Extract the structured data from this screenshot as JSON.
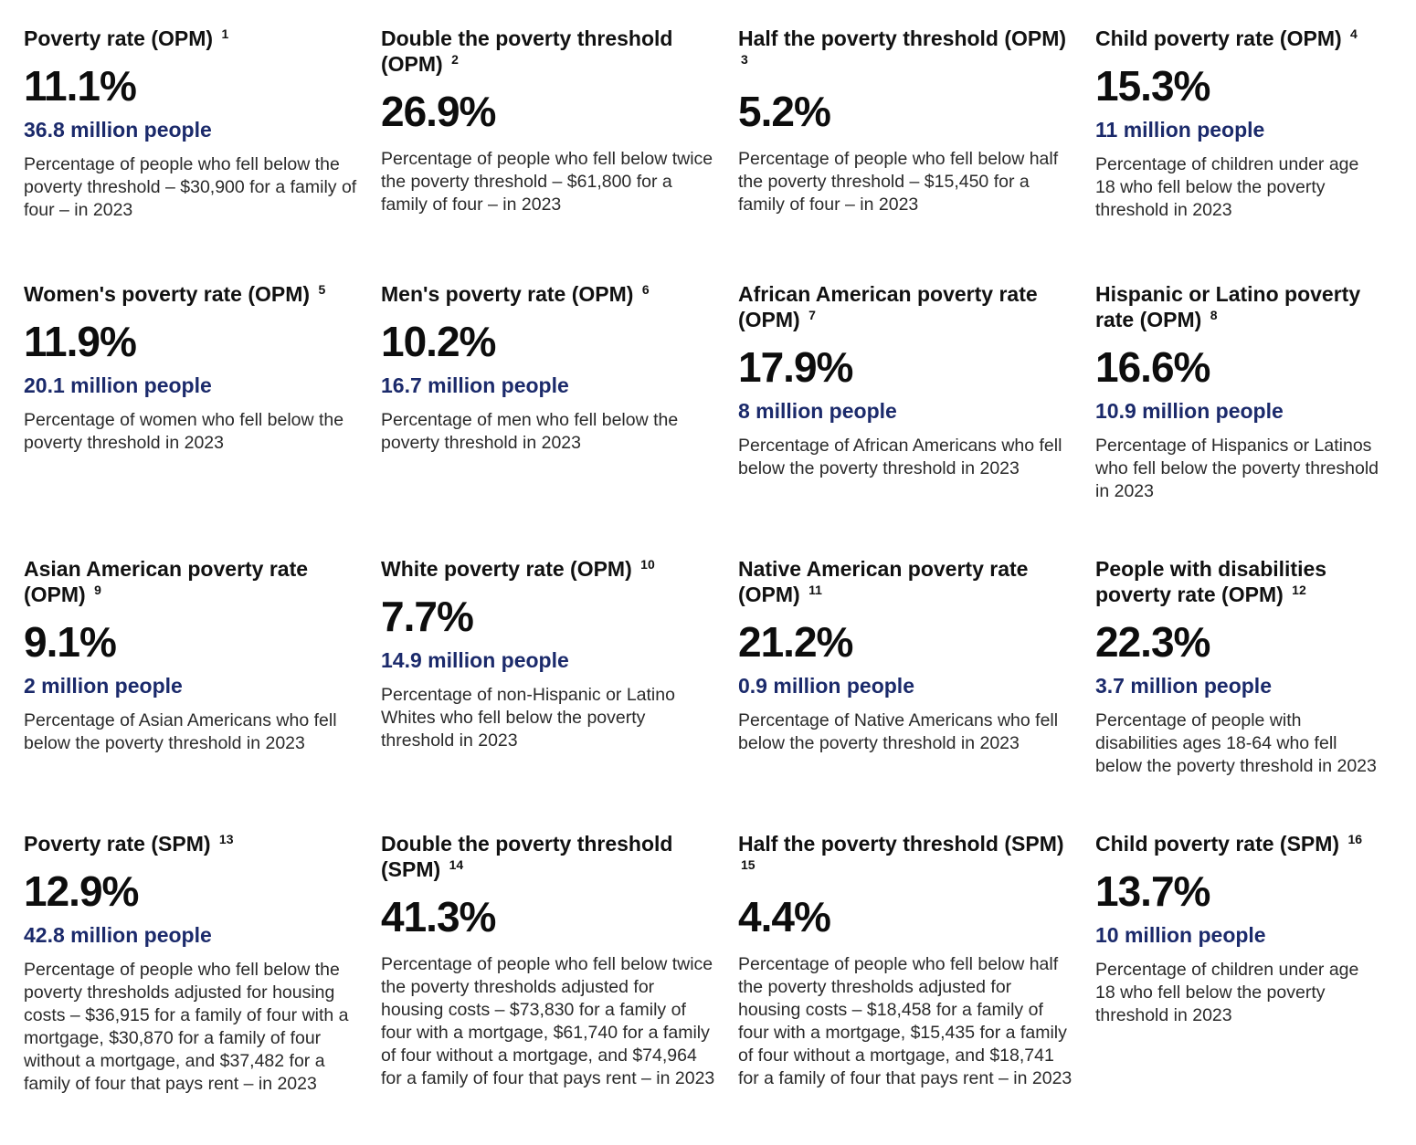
{
  "colors": {
    "people_text": "#1b2a6b",
    "rate_text": "#0d0d0d",
    "body_text": "#2a2a2a"
  },
  "cards": [
    {
      "title": "Poverty rate (OPM)",
      "footnote": "1",
      "rate": "11.1%",
      "people": "36.8 million people",
      "description": "Percentage of people who fell below the poverty threshold – $30,900 for a family of four – in 2023"
    },
    {
      "title": "Double the poverty threshold (OPM)",
      "footnote": "2",
      "rate": "26.9%",
      "people": "",
      "description": "Percentage of people who fell below twice the poverty threshold – $61,800 for a family of four – in 2023"
    },
    {
      "title": "Half the poverty threshold (OPM)",
      "footnote": "3",
      "rate": "5.2%",
      "people": "",
      "description": "Percentage of people who fell below half the poverty threshold – $15,450 for a family of four – in 2023"
    },
    {
      "title": "Child poverty rate (OPM)",
      "footnote": "4",
      "rate": "15.3%",
      "people": "11 million people",
      "description": "Percentage of children under age 18 who fell below the poverty threshold in 2023"
    },
    {
      "title": "Women's poverty rate (OPM)",
      "footnote": "5",
      "rate": "11.9%",
      "people": "20.1 million people",
      "description": "Percentage of women who fell below the poverty threshold in 2023"
    },
    {
      "title": "Men's poverty rate (OPM)",
      "footnote": "6",
      "rate": "10.2%",
      "people": "16.7 million people",
      "description": "Percentage of men who fell below the poverty threshold in 2023"
    },
    {
      "title": "African American poverty rate (OPM)",
      "footnote": "7",
      "rate": "17.9%",
      "people": "8 million people",
      "description": "Percentage of African Americans who fell below the poverty threshold in 2023"
    },
    {
      "title": "Hispanic or Latino poverty rate (OPM)",
      "footnote": "8",
      "rate": "16.6%",
      "people": "10.9 million people",
      "description": "Percentage of Hispanics or Latinos who fell below the poverty threshold in 2023"
    },
    {
      "title": "Asian American poverty rate (OPM)",
      "footnote": "9",
      "rate": "9.1%",
      "people": "2 million people",
      "description": "Percentage of Asian Americans who fell below the poverty threshold in 2023"
    },
    {
      "title": "White poverty rate (OPM)",
      "footnote": "10",
      "rate": "7.7%",
      "people": "14.9 million people",
      "description": "Percentage of non-Hispanic or Latino Whites who fell below the poverty threshold in 2023"
    },
    {
      "title": "Native American poverty rate (OPM)",
      "footnote": "11",
      "rate": "21.2%",
      "people": "0.9 million people",
      "description": "Percentage of Native Americans who fell below the poverty threshold in 2023"
    },
    {
      "title": "People with disabilities poverty rate (OPM)",
      "footnote": "12",
      "rate": "22.3%",
      "people": "3.7 million people",
      "description": "Percentage of people with disabilities ages 18-64 who fell below the poverty threshold in 2023"
    },
    {
      "title": "Poverty rate (SPM)",
      "footnote": "13",
      "rate": "12.9%",
      "people": "42.8 million people",
      "description": "Percentage of people who fell below the poverty thresholds adjusted for housing costs – $36,915 for a family of four with a mortgage, $30,870 for a family of four without a mortgage, and $37,482 for a family of four that pays rent – in 2023"
    },
    {
      "title": "Double the poverty threshold (SPM)",
      "footnote": "14",
      "rate": "41.3%",
      "people": "",
      "description": "Percentage of people who fell below twice the poverty thresholds adjusted for housing costs – $73,830 for a family of four with a mortgage, $61,740 for a family of four without a mortgage, and $74,964 for a family of four that pays rent – in 2023"
    },
    {
      "title": "Half the poverty threshold (SPM)",
      "footnote": "15",
      "rate": "4.4%",
      "people": "",
      "description": "Percentage of people who fell below half the poverty thresholds adjusted for housing costs – $18,458 for a family of four with a mortgage, $15,435 for a family of four without a mortgage, and $18,741 for a family of four that pays rent – in 2023"
    },
    {
      "title": "Child poverty rate (SPM)",
      "footnote": "16",
      "rate": "13.7%",
      "people": "10 million people",
      "description": "Percentage of children under age 18 who fell below the poverty threshold in 2023"
    }
  ]
}
